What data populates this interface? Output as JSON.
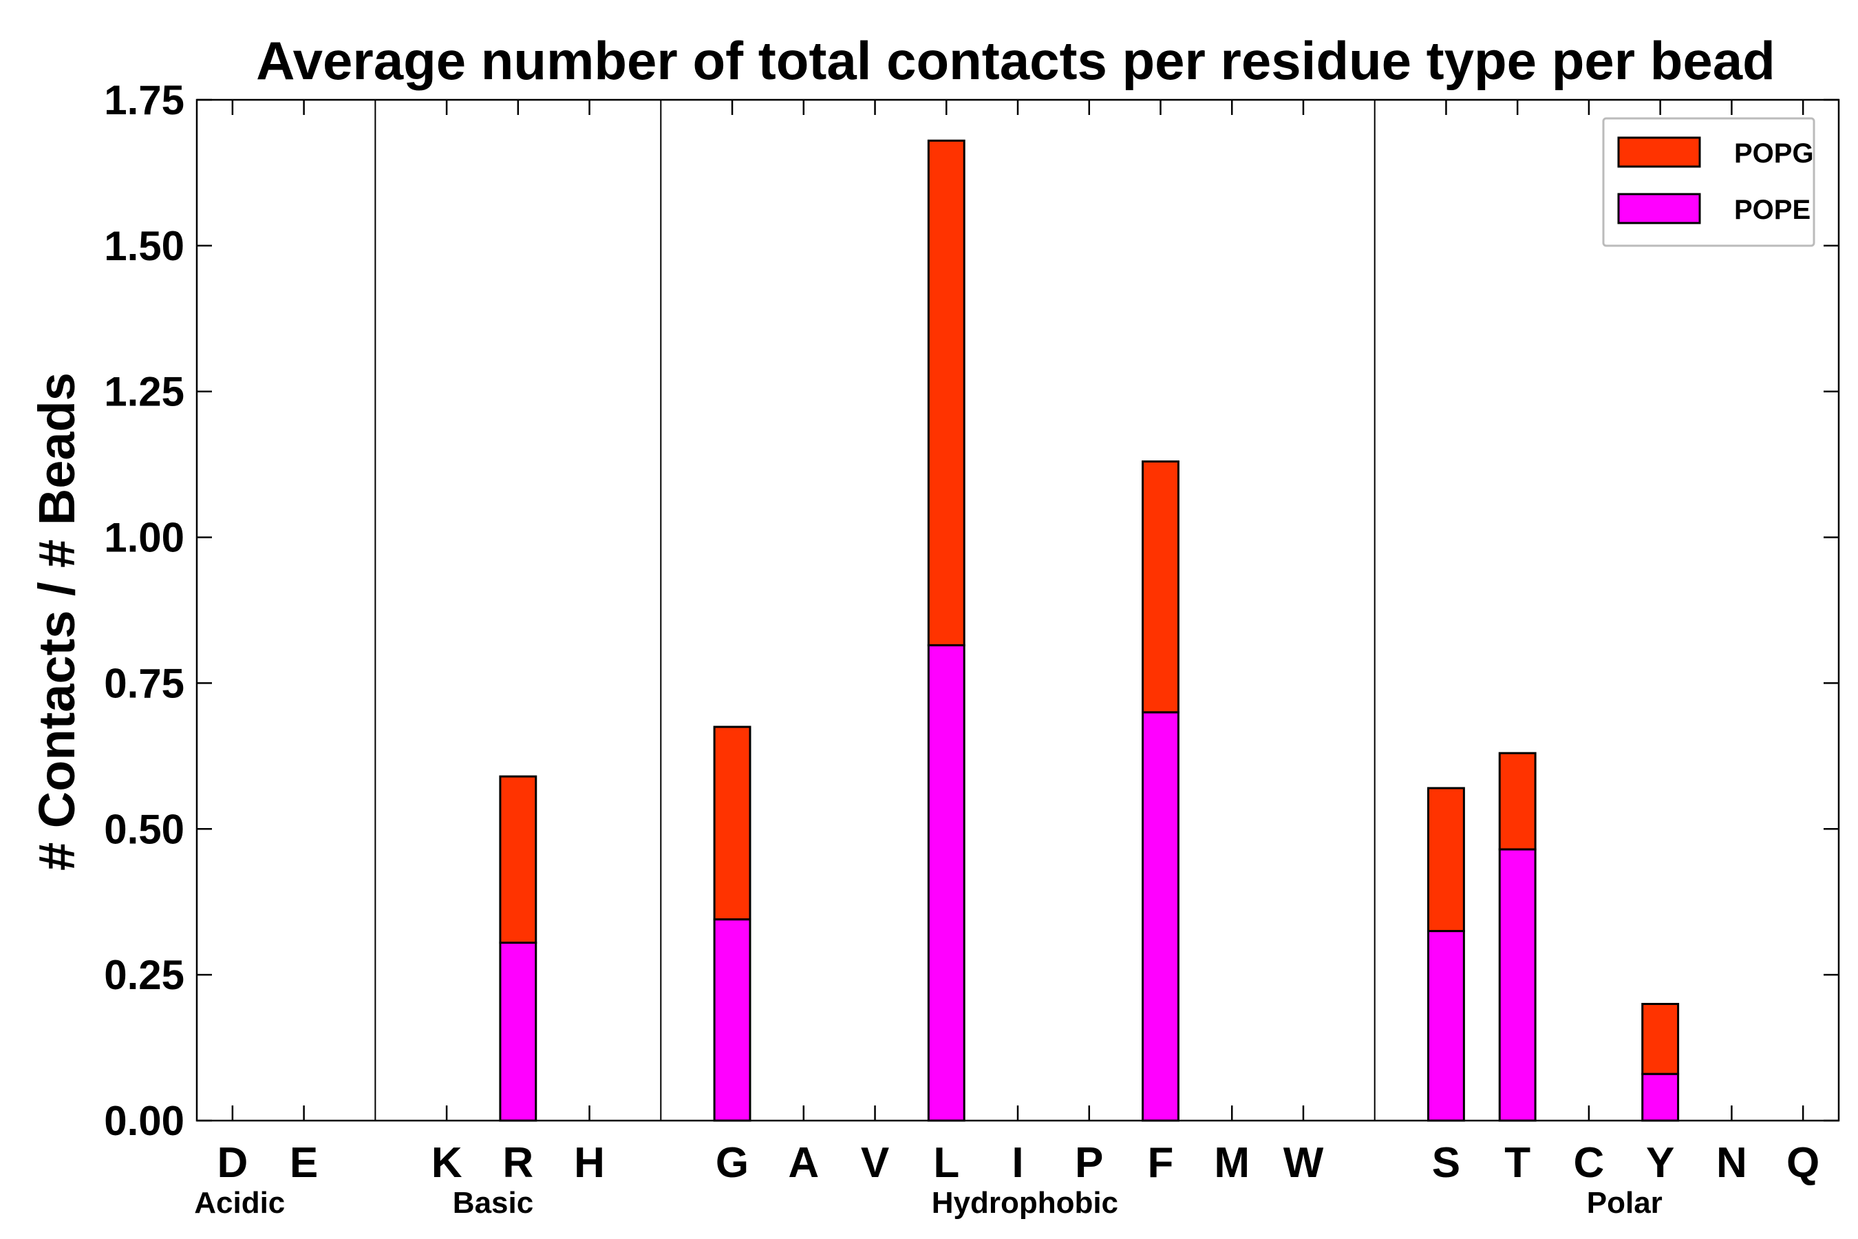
{
  "chart_data": {
    "type": "bar",
    "stacked": true,
    "title": "Average number of total contacts per residue type per bead",
    "xlabel": "",
    "ylabel": "# Contacts / # Beads",
    "ylim": [
      0,
      1.75
    ],
    "yticks": [
      "0.00",
      "0.25",
      "0.50",
      "0.75",
      "1.00",
      "1.25",
      "1.50",
      "1.75"
    ],
    "categories": [
      "D",
      "E",
      "K",
      "R",
      "H",
      "G",
      "A",
      "V",
      "L",
      "I",
      "P",
      "F",
      "M",
      "W",
      "S",
      "T",
      "C",
      "Y",
      "N",
      "Q"
    ],
    "slot_index": [
      0,
      1,
      3,
      4,
      5,
      7,
      8,
      9,
      10,
      11,
      12,
      13,
      14,
      15,
      17,
      18,
      19,
      20,
      21,
      22
    ],
    "total_slots": 23,
    "group_dividers_after_slot": [
      2,
      6,
      16
    ],
    "groups": [
      {
        "name": "Acidic",
        "center_slot": 0.1
      },
      {
        "name": "Basic",
        "center_slot": 3.65
      },
      {
        "name": "Hydrophobic",
        "center_slot": 11.1
      },
      {
        "name": "Polar",
        "center_slot": 19.5
      }
    ],
    "series": [
      {
        "name": "POPE",
        "color": "#ff00ff",
        "values": [
          0,
          0,
          0,
          0.305,
          0,
          0.345,
          0,
          0,
          0.815,
          0,
          0,
          0.7,
          0,
          0,
          0.325,
          0.465,
          0,
          0.08,
          0,
          0
        ]
      },
      {
        "name": "POPG",
        "color": "#ff3300",
        "values": [
          0,
          0,
          0,
          0.285,
          0,
          0.33,
          0,
          0,
          0.865,
          0,
          0,
          0.43,
          0,
          0,
          0.245,
          0.165,
          0,
          0.12,
          0,
          0
        ]
      }
    ],
    "legend": {
      "position": "top-right",
      "order": [
        "POPG",
        "POPE"
      ]
    }
  }
}
